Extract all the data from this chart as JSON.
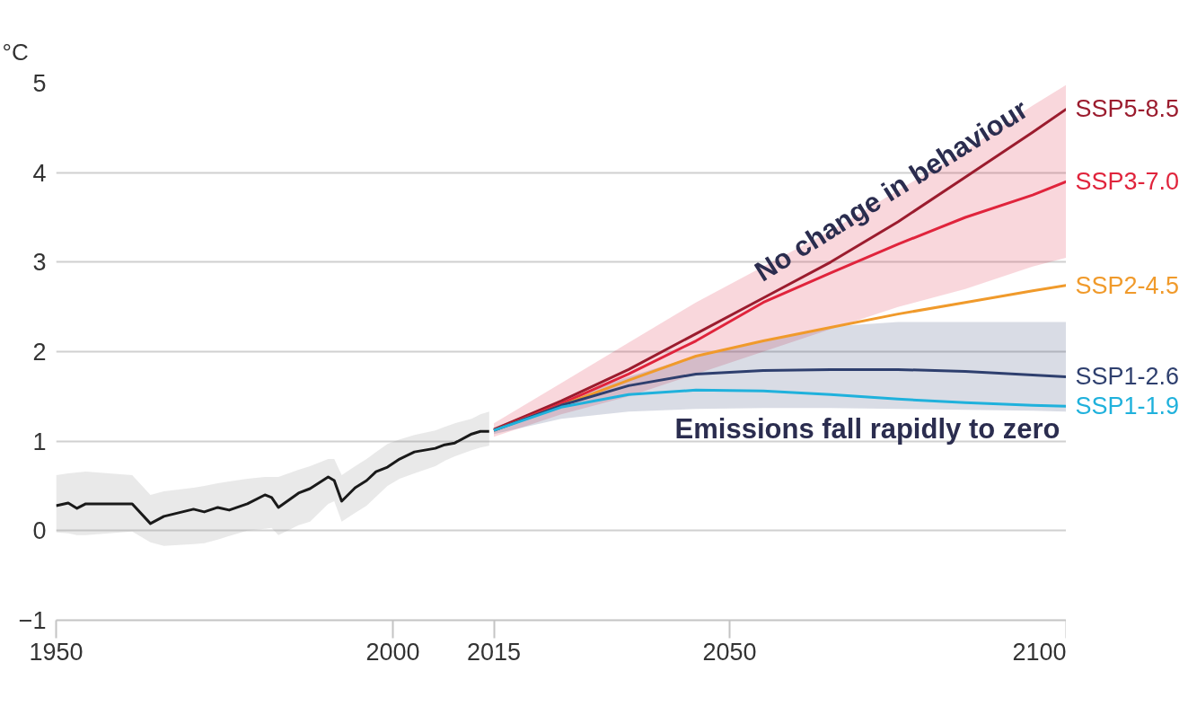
{
  "chart_data": {
    "type": "line",
    "ylabel": "°C",
    "xlim": [
      1950,
      2100
    ],
    "ylim": [
      -1,
      5
    ],
    "xticks": [
      1950,
      2000,
      2015,
      2050,
      2100
    ],
    "yticks": [
      -1,
      0,
      1,
      2,
      3,
      4,
      5
    ],
    "grid": "y",
    "legend": false,
    "marker": "none",
    "line_style": "solid",
    "series": [
      {
        "color": "#1a1a1a",
        "x": [
          1950,
          1951.8,
          1953.1,
          1954.4,
          1961.3,
          1964,
          1966,
          1970.4,
          1972,
          1974,
          1975.7,
          1978.4,
          1981,
          1982,
          1983,
          1986,
          1987.7,
          1990.4,
          1991.3,
          1992.4,
          1994.4,
          1996.1,
          1997.5,
          1999.2,
          2001,
          2003.2,
          2006.3,
          2007.7,
          2009.2,
          2011.7,
          2013,
          2014.3
        ],
        "values": [
          0.28,
          0.31,
          0.25,
          0.3,
          0.3,
          0.08,
          0.16,
          0.24,
          0.21,
          0.26,
          0.23,
          0.3,
          0.4,
          0.37,
          0.26,
          0.42,
          0.47,
          0.6,
          0.56,
          0.33,
          0.48,
          0.56,
          0.66,
          0.71,
          0.8,
          0.88,
          0.92,
          0.96,
          0.98,
          1.08,
          1.11,
          1.11
        ],
        "lower": [
          -0.02,
          -0.03,
          -0.05,
          -0.05,
          -0.01,
          -0.13,
          -0.17,
          -0.15,
          -0.14,
          -0.1,
          -0.06,
          0.0,
          0.02,
          0.03,
          -0.05,
          0.06,
          0.1,
          0.3,
          0.33,
          0.1,
          0.2,
          0.28,
          0.38,
          0.5,
          0.58,
          0.64,
          0.72,
          0.78,
          0.83,
          0.9,
          0.93,
          0.95
        ],
        "upper": [
          0.62,
          0.64,
          0.65,
          0.66,
          0.62,
          0.4,
          0.44,
          0.48,
          0.5,
          0.53,
          0.55,
          0.58,
          0.6,
          0.6,
          0.6,
          0.68,
          0.72,
          0.8,
          0.8,
          0.62,
          0.72,
          0.8,
          0.88,
          0.97,
          1.02,
          1.07,
          1.12,
          1.16,
          1.2,
          1.25,
          1.3,
          1.33
        ]
      },
      {
        "name": "SSP5-8.5",
        "color": "#9b1c2e",
        "x": [
          2015,
          2025,
          2035,
          2045,
          2055,
          2065,
          2075,
          2085,
          2095,
          2100
        ],
        "values": [
          1.13,
          1.45,
          1.8,
          2.2,
          2.6,
          3.0,
          3.45,
          3.95,
          4.45,
          4.71
        ]
      },
      {
        "name": "SSP3-7.0",
        "color": "#e0243c",
        "x": [
          2015,
          2025,
          2035,
          2045,
          2055,
          2065,
          2075,
          2085,
          2095,
          2100
        ],
        "values": [
          1.12,
          1.42,
          1.75,
          2.12,
          2.55,
          2.88,
          3.2,
          3.5,
          3.75,
          3.9
        ],
        "lower": [
          1.05,
          1.3,
          1.5,
          1.75,
          2.0,
          2.25,
          2.5,
          2.7,
          2.95,
          3.05
        ],
        "upper": [
          1.2,
          1.65,
          2.1,
          2.55,
          2.95,
          3.35,
          3.8,
          4.25,
          4.75,
          4.98
        ]
      },
      {
        "name": "SSP2-4.5",
        "color": "#f09a2b",
        "x": [
          2015,
          2025,
          2035,
          2045,
          2055,
          2065,
          2075,
          2085,
          2095,
          2100
        ],
        "values": [
          1.12,
          1.4,
          1.68,
          1.95,
          2.12,
          2.27,
          2.42,
          2.55,
          2.68,
          2.74
        ]
      },
      {
        "name": "SSP1-2.6",
        "color": "#2e3f6e",
        "x": [
          2015,
          2025,
          2035,
          2045,
          2055,
          2065,
          2075,
          2085,
          2095,
          2100
        ],
        "values": [
          1.12,
          1.4,
          1.62,
          1.75,
          1.79,
          1.8,
          1.8,
          1.78,
          1.74,
          1.72
        ],
        "lower": [
          1.08,
          1.25,
          1.33,
          1.36,
          1.37,
          1.37,
          1.36,
          1.35,
          1.34,
          1.33
        ],
        "upper": [
          1.15,
          1.45,
          1.72,
          1.95,
          2.12,
          2.28,
          2.33,
          2.33,
          2.33,
          2.33
        ]
      },
      {
        "name": "SSP1-1.9",
        "color": "#1fb1dc",
        "x": [
          2015,
          2025,
          2035,
          2045,
          2055,
          2065,
          2075,
          2085,
          2095,
          2100
        ],
        "values": [
          1.12,
          1.38,
          1.52,
          1.57,
          1.56,
          1.52,
          1.47,
          1.43,
          1.4,
          1.39
        ]
      }
    ],
    "annotations": [
      {
        "text": "No change in behaviour",
        "x": 2074,
        "y": 3.8
      },
      "Emissions fall rapidly to zero"
    ]
  }
}
